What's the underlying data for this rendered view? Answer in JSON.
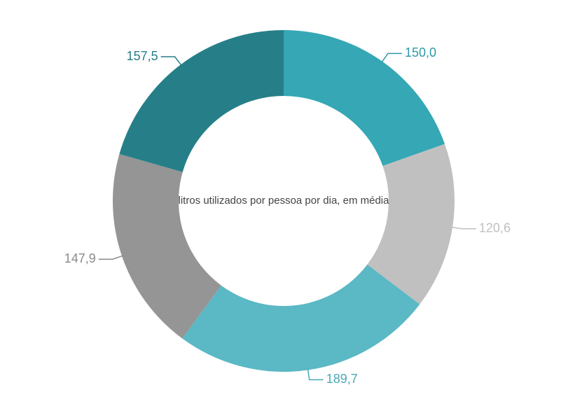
{
  "chart_data": {
    "type": "donut",
    "center_text": "litros utilizados por pessoa por dia, em média",
    "values": [
      150.0,
      120.6,
      189.7,
      147.9,
      157.5
    ],
    "value_labels": [
      "150,0",
      "120,6",
      "189,7",
      "147,9",
      "157,5"
    ],
    "colors": [
      "#35a7b5",
      "#c0c0c0",
      "#5bb8c5",
      "#959595",
      "#267f88"
    ],
    "label_colors": [
      "#2e9aa8",
      "#c0c0c0",
      "#4aa9b6",
      "#8a8a8a",
      "#267f88"
    ]
  }
}
